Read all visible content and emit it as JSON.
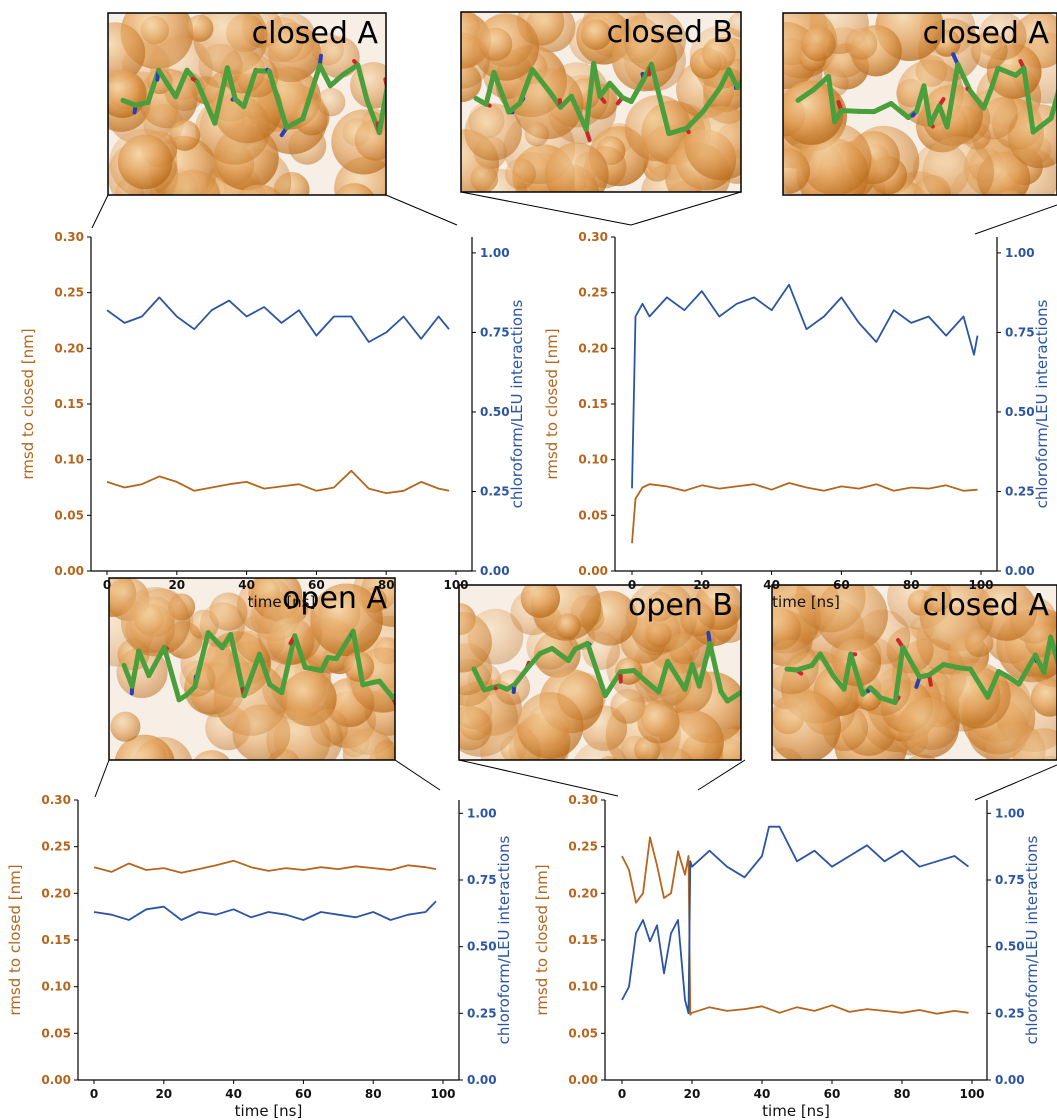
{
  "colors": {
    "rmsd": "#b5651d",
    "interactions": "#2b55a2"
  },
  "insets": [
    {
      "label": "closed A",
      "palette": "sphere-orange-green-sticks"
    },
    {
      "label": "closed B",
      "palette": "sphere-orange-green-sticks"
    },
    {
      "label": "closed A",
      "palette": "sphere-orange-green-sticks"
    },
    {
      "label": "open A",
      "palette": "sphere-orange-green-sticks"
    },
    {
      "label": "open B",
      "palette": "sphere-orange-green-sticks"
    },
    {
      "label": "closed A",
      "palette": "sphere-orange-green-sticks"
    }
  ],
  "chart_data": [
    {
      "type": "line",
      "xlabel": "time [ns]",
      "ylabel_left": "rmsd to closed [nm]",
      "ylabel_right": "chloroform/LEU interactions",
      "xlim": [
        0,
        100
      ],
      "ylim_left": [
        0,
        0.3
      ],
      "ylim_right": [
        0,
        1.05
      ],
      "xticks": [
        "0",
        "20",
        "40",
        "60",
        "80",
        "100"
      ],
      "yticks_left": [
        "0.00",
        "0.05",
        "0.10",
        "0.15",
        "0.20",
        "0.25",
        "0.30"
      ],
      "yticks_right": [
        "0.00",
        "0.25",
        "0.50",
        "0.75",
        "1.00"
      ],
      "series": [
        {
          "axis": "left",
          "x": [
            0,
            5,
            10,
            15,
            20,
            25,
            30,
            35,
            40,
            45,
            50,
            55,
            60,
            65,
            70,
            75,
            80,
            85,
            90,
            95,
            98
          ],
          "y": [
            0.08,
            0.075,
            0.078,
            0.085,
            0.08,
            0.072,
            0.075,
            0.078,
            0.08,
            0.074,
            0.076,
            0.078,
            0.072,
            0.075,
            0.09,
            0.074,
            0.07,
            0.072,
            0.08,
            0.074,
            0.072
          ]
        },
        {
          "axis": "right",
          "x": [
            0,
            5,
            10,
            15,
            20,
            25,
            30,
            35,
            40,
            45,
            50,
            55,
            60,
            65,
            70,
            75,
            80,
            85,
            90,
            95,
            98
          ],
          "y": [
            0.82,
            0.78,
            0.8,
            0.86,
            0.8,
            0.76,
            0.82,
            0.85,
            0.8,
            0.83,
            0.78,
            0.82,
            0.74,
            0.8,
            0.8,
            0.72,
            0.75,
            0.8,
            0.73,
            0.8,
            0.76
          ]
        }
      ]
    },
    {
      "type": "line",
      "xlabel": "time [ns]",
      "ylabel_left": "rmsd to closed [nm]",
      "ylabel_right": "chloroform/LEU interactions",
      "xlim": [
        0,
        100
      ],
      "ylim_left": [
        0,
        0.3
      ],
      "ylim_right": [
        0,
        1.05
      ],
      "xticks": [
        "0",
        "20",
        "40",
        "60",
        "80",
        "100"
      ],
      "yticks_left": [
        "0.00",
        "0.05",
        "0.10",
        "0.15",
        "0.20",
        "0.25",
        "0.30"
      ],
      "yticks_right": [
        "0.00",
        "0.25",
        "0.50",
        "0.75",
        "1.00"
      ],
      "series": [
        {
          "axis": "left",
          "x": [
            0,
            1,
            3,
            5,
            10,
            15,
            20,
            25,
            30,
            35,
            40,
            45,
            50,
            55,
            60,
            65,
            70,
            75,
            80,
            85,
            90,
            95,
            99
          ],
          "y": [
            0.025,
            0.065,
            0.075,
            0.078,
            0.076,
            0.072,
            0.077,
            0.074,
            0.076,
            0.078,
            0.073,
            0.079,
            0.075,
            0.072,
            0.076,
            0.074,
            0.078,
            0.072,
            0.075,
            0.074,
            0.077,
            0.072,
            0.073
          ]
        },
        {
          "axis": "right",
          "x": [
            0,
            1,
            3,
            5,
            10,
            15,
            20,
            25,
            30,
            35,
            40,
            45,
            50,
            55,
            60,
            65,
            70,
            75,
            80,
            85,
            90,
            95,
            98,
            99
          ],
          "y": [
            0.26,
            0.8,
            0.84,
            0.8,
            0.86,
            0.82,
            0.88,
            0.8,
            0.84,
            0.86,
            0.82,
            0.9,
            0.76,
            0.8,
            0.86,
            0.78,
            0.72,
            0.82,
            0.78,
            0.8,
            0.74,
            0.8,
            0.68,
            0.74
          ]
        }
      ]
    },
    {
      "type": "line",
      "xlabel": "time [ns]",
      "ylabel_left": "rmsd to closed [nm]",
      "ylabel_right": "chloroform/LEU interactions",
      "xlim": [
        0,
        100
      ],
      "ylim_left": [
        0,
        0.3
      ],
      "ylim_right": [
        0,
        1.05
      ],
      "xticks": [
        "0",
        "20",
        "40",
        "60",
        "80",
        "100"
      ],
      "yticks_left": [
        "0.00",
        "0.05",
        "0.10",
        "0.15",
        "0.20",
        "0.25",
        "0.30"
      ],
      "yticks_right": [
        "0.00",
        "0.25",
        "0.50",
        "0.75",
        "1.00"
      ],
      "series": [
        {
          "axis": "left",
          "x": [
            0,
            5,
            10,
            15,
            20,
            25,
            30,
            35,
            40,
            45,
            50,
            55,
            60,
            65,
            70,
            75,
            80,
            85,
            90,
            95,
            98
          ],
          "y": [
            0.228,
            0.223,
            0.232,
            0.225,
            0.227,
            0.222,
            0.226,
            0.23,
            0.235,
            0.228,
            0.224,
            0.227,
            0.225,
            0.228,
            0.226,
            0.229,
            0.227,
            0.225,
            0.23,
            0.228,
            0.226
          ]
        },
        {
          "axis": "right",
          "x": [
            0,
            5,
            10,
            15,
            20,
            25,
            30,
            35,
            40,
            45,
            50,
            55,
            60,
            65,
            70,
            75,
            80,
            85,
            90,
            95,
            98
          ],
          "y": [
            0.63,
            0.62,
            0.6,
            0.64,
            0.65,
            0.6,
            0.63,
            0.62,
            0.64,
            0.61,
            0.63,
            0.62,
            0.6,
            0.63,
            0.62,
            0.61,
            0.63,
            0.6,
            0.62,
            0.63,
            0.67
          ]
        }
      ]
    },
    {
      "type": "line",
      "xlabel": "time [ns]",
      "ylabel_left": "rmsd to closed [nm]",
      "ylabel_right": "chloroform/LEU interactions",
      "xlim": [
        0,
        100
      ],
      "ylim_left": [
        0,
        0.3
      ],
      "ylim_right": [
        0,
        1.05
      ],
      "xticks": [
        "0",
        "20",
        "40",
        "60",
        "80",
        "100"
      ],
      "yticks_left": [
        "0.00",
        "0.05",
        "0.10",
        "0.15",
        "0.20",
        "0.25",
        "0.30"
      ],
      "yticks_right": [
        "0.00",
        "0.25",
        "0.50",
        "0.75",
        "1.00"
      ],
      "series": [
        {
          "axis": "left",
          "x": [
            0,
            2,
            4,
            6,
            8,
            10,
            12,
            14,
            16,
            18,
            19,
            19.5,
            20,
            25,
            30,
            35,
            40,
            45,
            50,
            55,
            60,
            65,
            70,
            75,
            80,
            85,
            90,
            95,
            99
          ],
          "y": [
            0.24,
            0.225,
            0.19,
            0.2,
            0.26,
            0.23,
            0.195,
            0.2,
            0.245,
            0.22,
            0.24,
            0.07,
            0.072,
            0.078,
            0.074,
            0.076,
            0.079,
            0.072,
            0.078,
            0.074,
            0.08,
            0.073,
            0.076,
            0.074,
            0.072,
            0.075,
            0.071,
            0.074,
            0.072
          ]
        },
        {
          "axis": "right",
          "x": [
            0,
            2,
            4,
            6,
            8,
            10,
            12,
            14,
            16,
            18,
            19,
            19.5,
            20,
            25,
            30,
            35,
            40,
            42,
            45,
            50,
            55,
            60,
            65,
            70,
            75,
            80,
            85,
            90,
            95,
            99
          ],
          "y": [
            0.3,
            0.35,
            0.55,
            0.6,
            0.52,
            0.58,
            0.4,
            0.55,
            0.6,
            0.3,
            0.25,
            0.82,
            0.8,
            0.86,
            0.8,
            0.76,
            0.84,
            0.95,
            0.95,
            0.82,
            0.86,
            0.8,
            0.84,
            0.88,
            0.82,
            0.86,
            0.8,
            0.82,
            0.84,
            0.8
          ]
        }
      ]
    }
  ]
}
